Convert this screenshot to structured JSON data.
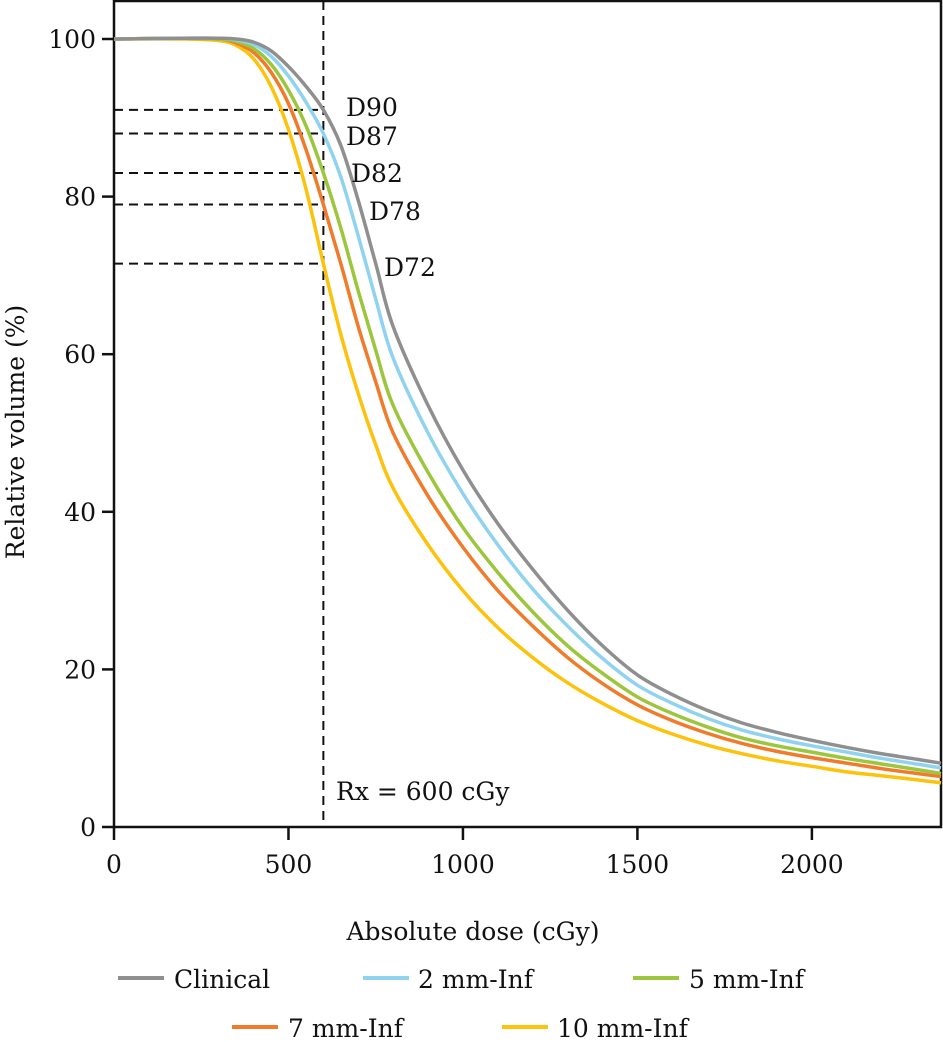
{
  "chart_data": {
    "type": "line",
    "title": "",
    "xlabel": "Absolute dose (cGy)",
    "ylabel": "Relative volume (%)",
    "xlim": [
      0,
      2370
    ],
    "ylim": [
      0,
      100
    ],
    "xticks": [
      0,
      500,
      1000,
      1500,
      2000
    ],
    "xtick_labels": [
      "0",
      "500",
      "1000",
      "1500",
      "2000"
    ],
    "yticks": [
      0,
      20,
      40,
      60,
      80,
      100
    ],
    "ytick_labels": [
      "0",
      "20",
      "40",
      "60",
      "80",
      "100"
    ],
    "grid": false,
    "legend_position": "bottom",
    "reference_line": {
      "x": 600,
      "label": "Rx = 600 cGy",
      "style": "dashed"
    },
    "dose_markers": [
      {
        "label": "D90",
        "y": 91
      },
      {
        "label": "D87",
        "y": 88
      },
      {
        "label": "D82",
        "y": 83
      },
      {
        "label": "D78",
        "y": 79
      },
      {
        "label": "D72",
        "y": 71.5
      }
    ],
    "x": [
      0,
      200,
      300,
      350,
      400,
      450,
      500,
      550,
      600,
      650,
      700,
      750,
      800,
      900,
      1000,
      1100,
      1200,
      1300,
      1400,
      1500,
      1600,
      1700,
      1800,
      1900,
      2000,
      2100,
      2200,
      2300,
      2370
    ],
    "series": [
      {
        "name": "Clinical",
        "color": "#8f8f8f",
        "values": [
          100,
          100.1,
          100.1,
          100.0,
          99.6,
          98.5,
          96.5,
          94.0,
          91.0,
          86.5,
          79.5,
          71.5,
          63.5,
          53.5,
          45.3,
          38.5,
          32.7,
          27.5,
          23.0,
          19.3,
          16.8,
          14.8,
          13.2,
          12.0,
          11.0,
          10.1,
          9.3,
          8.6,
          8.1
        ]
      },
      {
        "name": "2 mm-Inf",
        "color": "#8fd3f0",
        "values": [
          100,
          100.1,
          100.1,
          99.9,
          99.3,
          97.8,
          95.3,
          92.0,
          88.0,
          82.5,
          75.0,
          67.0,
          59.5,
          50.0,
          42.3,
          35.8,
          30.2,
          25.5,
          21.4,
          18.0,
          15.7,
          13.8,
          12.3,
          11.2,
          10.3,
          9.5,
          8.7,
          8.0,
          7.5
        ]
      },
      {
        "name": "5 mm-Inf",
        "color": "#9cc63b",
        "values": [
          100,
          100.1,
          100.0,
          99.7,
          98.8,
          96.8,
          93.5,
          89.0,
          83.0,
          76.0,
          68.0,
          60.5,
          53.5,
          45.0,
          38.0,
          32.3,
          27.3,
          23.0,
          19.5,
          16.5,
          14.4,
          12.7,
          11.3,
          10.3,
          9.5,
          8.7,
          8.0,
          7.3,
          6.8
        ]
      },
      {
        "name": "7 mm-Inf",
        "color": "#f07b2a",
        "values": [
          100,
          100.1,
          100.0,
          99.5,
          98.3,
          95.8,
          91.8,
          86.0,
          79.0,
          71.5,
          63.5,
          56.5,
          50.0,
          42.0,
          35.5,
          30.0,
          25.5,
          21.5,
          18.2,
          15.5,
          13.5,
          11.9,
          10.6,
          9.6,
          8.8,
          8.1,
          7.4,
          6.8,
          6.4
        ]
      },
      {
        "name": "10 mm-Inf",
        "color": "#fcc20c",
        "values": [
          100,
          100.0,
          99.8,
          99.2,
          97.5,
          94.0,
          88.5,
          81.0,
          71.5,
          62.5,
          55.0,
          48.5,
          43.0,
          35.8,
          30.0,
          25.3,
          21.5,
          18.3,
          15.7,
          13.5,
          11.8,
          10.4,
          9.3,
          8.4,
          7.7,
          7.0,
          6.5,
          6.0,
          5.6
        ]
      }
    ]
  }
}
